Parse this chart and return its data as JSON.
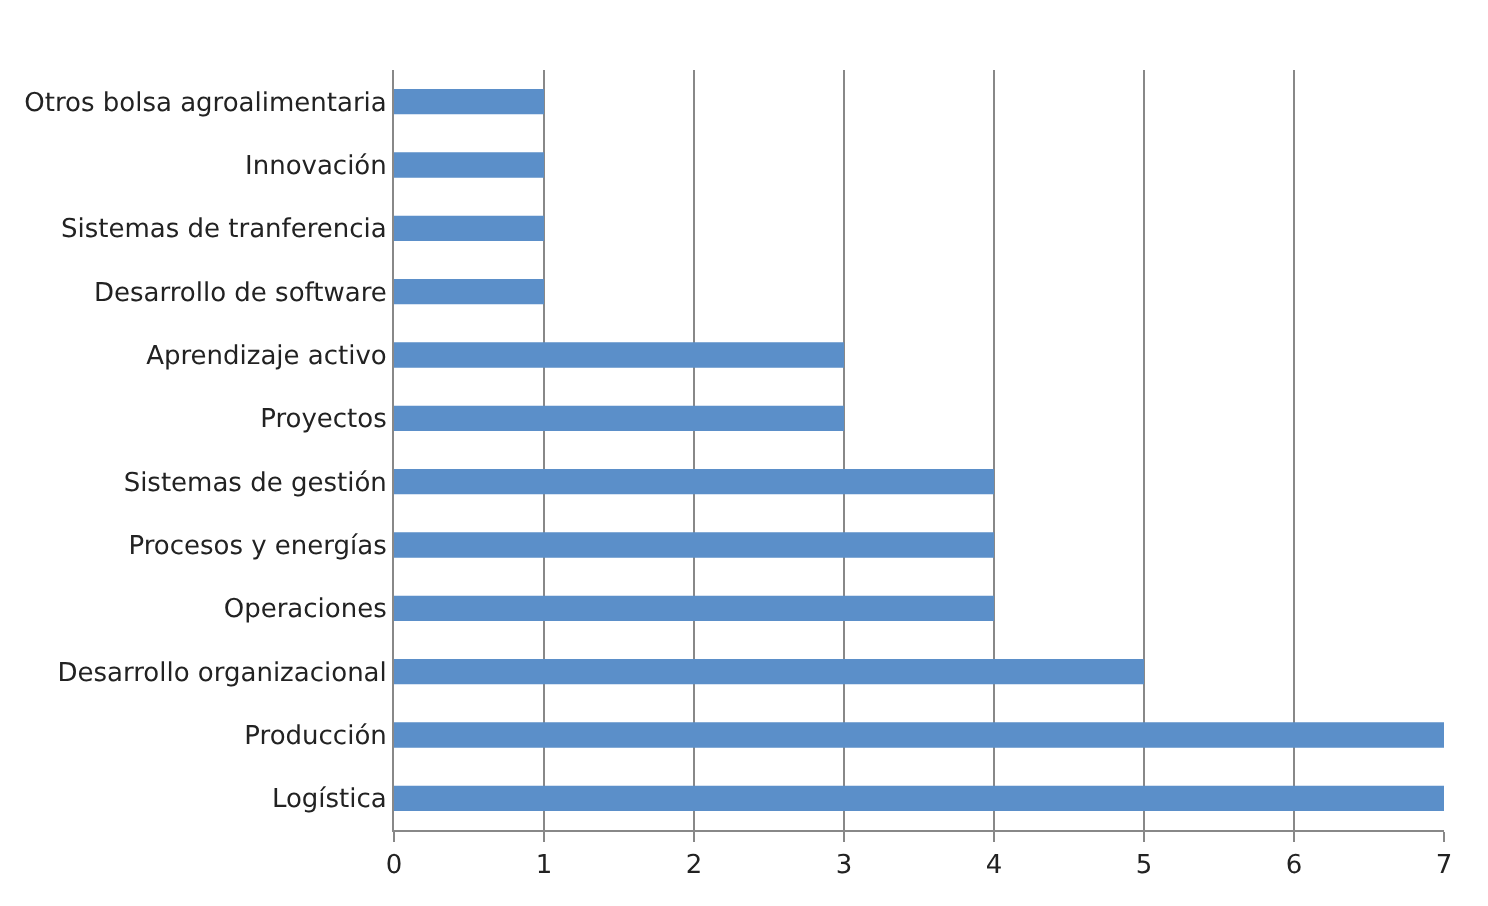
{
  "chart_data": {
    "type": "bar",
    "orientation": "horizontal",
    "categories": [
      "Otros bolsa agroalimentaria",
      "Innovación",
      "Sistemas de tranferencia",
      "Desarrollo de software",
      "Aprendizaje activo",
      "Proyectos",
      "Sistemas de gestión",
      "Procesos y energías",
      "Operaciones",
      "Desarrollo organizacional",
      "Producción",
      "Logística"
    ],
    "values": [
      1,
      1,
      1,
      1,
      3,
      3,
      4,
      4,
      4,
      5,
      7,
      7
    ],
    "color": "#5b8fc9",
    "xlim": [
      0,
      7
    ],
    "xticks": [
      0,
      1,
      2,
      3,
      4,
      5,
      6,
      7
    ],
    "grid": "x",
    "legend": false
  }
}
